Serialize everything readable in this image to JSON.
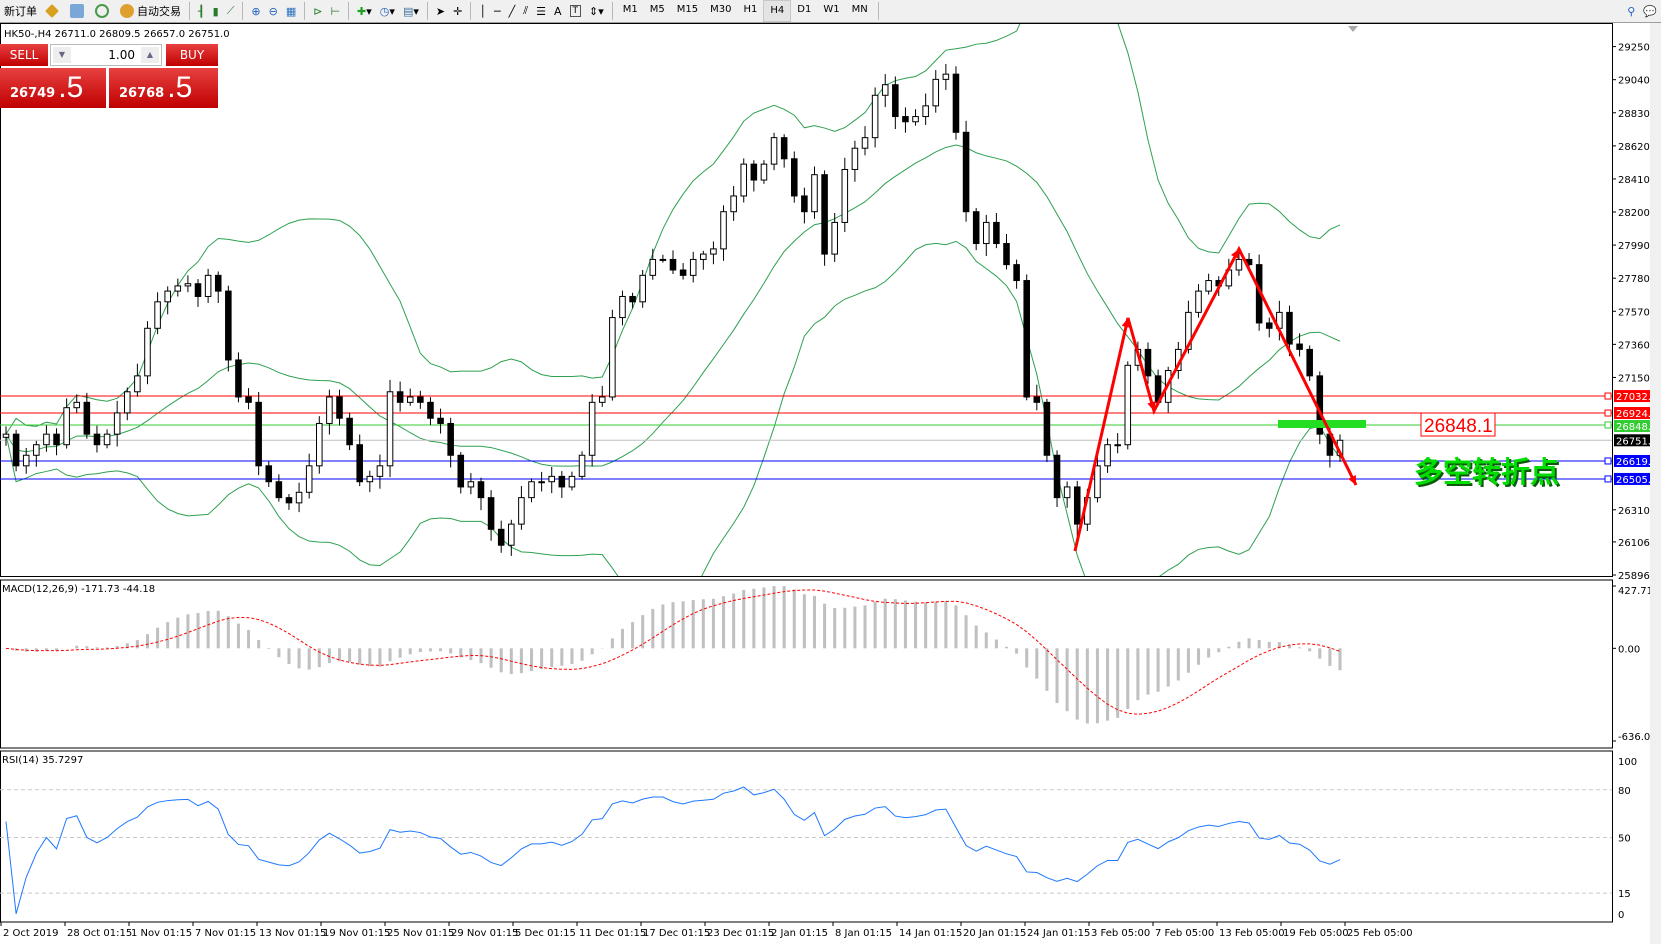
{
  "toolbar": {
    "new_order": "新订单",
    "auto_trading": "自动交易",
    "timeframes": [
      "M1",
      "M5",
      "M15",
      "M30",
      "H1",
      "H4",
      "D1",
      "W1",
      "MN"
    ],
    "active_timeframe": "H4"
  },
  "chart": {
    "header": "HK50-,H4  26711.0 26809.5 26657.0 26751.0",
    "symbol": "HK50-",
    "timeframe": "H4"
  },
  "trade_panel": {
    "sell_label": "SELL",
    "buy_label": "BUY",
    "volume": "1.00",
    "sell_price_main": "26749",
    "sell_price_frac": ".5",
    "buy_price_main": "26768",
    "buy_price_frac": ".5",
    "color": "#d01010"
  },
  "annotations": {
    "price_box": "26848.1",
    "text": "多空转折点",
    "text_color": "#00dd00",
    "arrow_color": "#ff0000",
    "zone_color": "#22dd22"
  },
  "chart_data": {
    "type": "candlestick",
    "price_axis": {
      "ticks": [
        "29250.0",
        "29040.0",
        "28830.0",
        "28620.0",
        "28410.0",
        "28200.0",
        "27990.0",
        "27780.0",
        "27570.0",
        "27360.0",
        "27150.0",
        "26310.0",
        "26106.0",
        "25896.0"
      ],
      "range": [
        25896,
        29250
      ]
    },
    "horizontal_lines": [
      {
        "value": "27032.0",
        "color": "#ff0000"
      },
      {
        "value": "26924.2",
        "color": "#ff0000"
      },
      {
        "value": "26848.1",
        "color": "#33cc33"
      },
      {
        "value": "26751.0",
        "color": "#000000",
        "line": "#c0c0c0"
      },
      {
        "value": "26619.8",
        "color": "#0000ff"
      },
      {
        "value": "26505.7",
        "color": "#0000ff"
      }
    ],
    "closes": [
      26790,
      26589,
      26656,
      26723,
      26790,
      26723,
      26958,
      26992,
      26790,
      26723,
      26790,
      26925,
      27059,
      27160,
      27462,
      27630,
      27698,
      27731,
      27745,
      27664,
      27798,
      27698,
      27261,
      27026,
      26992,
      26589,
      26488,
      26387,
      26354,
      26421,
      26589,
      26858,
      27026,
      26891,
      26723,
      26488,
      26522,
      26589,
      27059,
      26992,
      27026,
      26992,
      26891,
      26858,
      26656,
      26455,
      26488,
      26387,
      26186,
      26085,
      26219,
      26387,
      26488,
      26488,
      26522,
      26455,
      26522,
      26656,
      26992,
      27026,
      27530,
      27664,
      27630,
      27798,
      27899,
      27899,
      27832,
      27798,
      27899,
      27933,
      27966,
      28202,
      28302,
      28504,
      28403,
      28504,
      28672,
      28538,
      28302,
      28202,
      28437,
      27933,
      28134,
      28470,
      28605,
      28672,
      28941,
      29008,
      28806,
      28773,
      28806,
      28874,
      29042,
      29075,
      28706,
      28202,
      28000,
      28134,
      28000,
      27866,
      27765,
      27026,
      26992,
      26656,
      26387,
      26455,
      26219,
      26387,
      26589,
      26723,
      26723,
      27227,
      27328,
      27160,
      26992,
      27194,
      27328,
      27563,
      27698,
      27765,
      27731,
      27832,
      27899,
      27866,
      27496,
      27462,
      27563,
      27362,
      27328,
      27160,
      26790,
      26656,
      26751
    ],
    "bollinger": {
      "period": 20,
      "deviations": 2,
      "color": "#2ea04f"
    },
    "macd": {
      "label": "MACD(12,26,9) -171.73 -44.18",
      "ticks": [
        "427.71",
        "0.00",
        "-636.02"
      ],
      "range": [
        -636.02,
        427.71
      ],
      "histogram_color": "#c0c0c0",
      "signal_color": "#ff0000"
    },
    "rsi": {
      "label": "RSI(14) 35.7297",
      "ticks": [
        "100",
        "80",
        "50",
        "15",
        "0"
      ],
      "levels": [
        80,
        50,
        15
      ],
      "color": "#1e78ff"
    },
    "time_labels": [
      "2 Oct 2019",
      "28 Oct 01:15",
      "1 Nov 01:15",
      "7 Nov 01:15",
      "13 Nov 01:15",
      "19 Nov 01:15",
      "25 Nov 01:15",
      "29 Nov 01:15",
      "5 Dec 01:15",
      "11 Dec 01:15",
      "17 Dec 01:15",
      "23 Dec 01:15",
      "2 Jan 01:15",
      "8 Jan 01:15",
      "14 Jan 01:15",
      "20 Jan 01:15",
      "24 Jan 01:15",
      "3 Feb 05:00",
      "7 Feb 05:00",
      "13 Feb 05:00",
      "19 Feb 05:00",
      "25 Feb 05:00"
    ]
  }
}
